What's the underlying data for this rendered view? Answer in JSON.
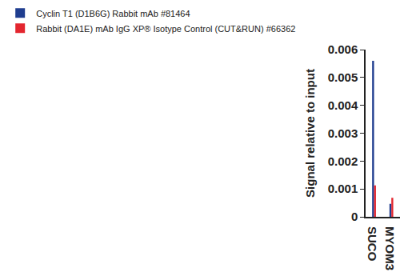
{
  "chart_data": {
    "type": "bar",
    "categories": [
      "SUCO",
      "MYOM3"
    ],
    "series": [
      {
        "name": "Cyclin T1 (D1B6G) Rabbit mAb #81464",
        "color": "#1f3d8f",
        "values": [
          0.0056,
          0.00047
        ]
      },
      {
        "name": "Rabbit (DA1E) mAb IgG XP® Isotype Control (CUT&RUN) #66362",
        "color": "#e3262f",
        "values": [
          0.00113,
          0.00068
        ]
      }
    ],
    "y_label": "Signal relative to input",
    "ylim": [
      0,
      0.006
    ],
    "yticks": [
      0,
      0.001,
      0.002,
      0.003,
      0.004,
      0.005,
      0.006
    ],
    "grid": false,
    "legend": "top left"
  }
}
